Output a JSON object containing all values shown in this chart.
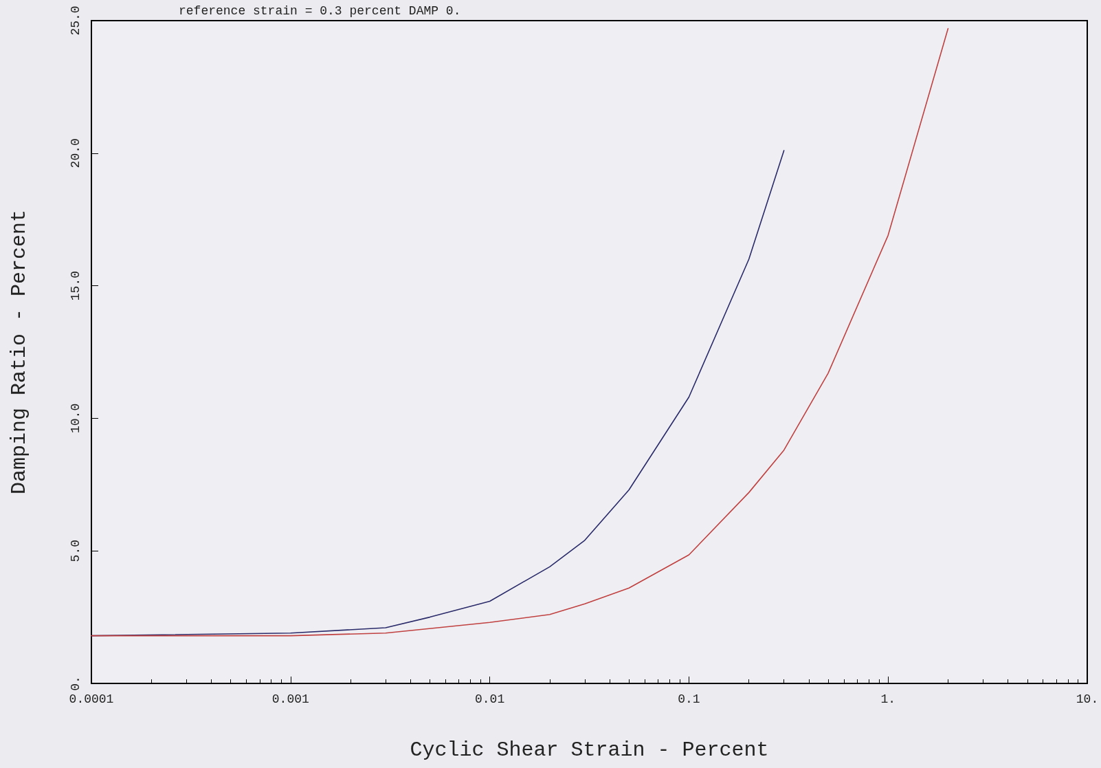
{
  "chart_data": {
    "type": "line",
    "title": "reference strain = 0.3 percent DAMP 0.",
    "xlabel": "Cyclic Shear Strain - Percent",
    "ylabel": "Damping Ratio - Percent",
    "log": "x",
    "xlim": [
      0.0001,
      10
    ],
    "xticks": [
      {
        "value": 0.0001,
        "label": "0.0001"
      },
      {
        "value": 0.001,
        "label": "0.001"
      },
      {
        "value": 0.01,
        "label": "0.01"
      },
      {
        "value": 0.1,
        "label": "0.1"
      },
      {
        "value": 1,
        "label": "1."
      },
      {
        "value": 10,
        "label": "10."
      }
    ],
    "ylim": [
      0,
      25
    ],
    "yticks": [
      {
        "value": 0,
        "label": "0."
      },
      {
        "value": 5,
        "label": "5.0"
      },
      {
        "value": 10,
        "label": "10.0"
      },
      {
        "value": 15,
        "label": "15.0"
      },
      {
        "value": 20,
        "label": "20.0"
      },
      {
        "value": 25,
        "label": "25.0"
      }
    ],
    "grid": false,
    "marker": "none",
    "line_style": "solid",
    "series": [
      {
        "color": "#2a2a6a",
        "x": [
          0.0001,
          0.001,
          0.003,
          0.005,
          0.01,
          0.02,
          0.03,
          0.05,
          0.1,
          0.2,
          0.3
        ],
        "values": [
          1.8,
          1.9,
          2.1,
          2.5,
          3.1,
          4.4,
          5.4,
          7.3,
          10.8,
          16.0,
          20.1
        ]
      },
      {
        "color": "#c04040",
        "x": [
          0.0001,
          0.001,
          0.003,
          0.01,
          0.02,
          0.03,
          0.05,
          0.1,
          0.2,
          0.3,
          0.5,
          1,
          2
        ],
        "values": [
          1.8,
          1.8,
          1.9,
          2.3,
          2.6,
          3.0,
          3.6,
          4.85,
          7.2,
          8.8,
          11.7,
          16.9,
          24.7
        ]
      }
    ]
  }
}
